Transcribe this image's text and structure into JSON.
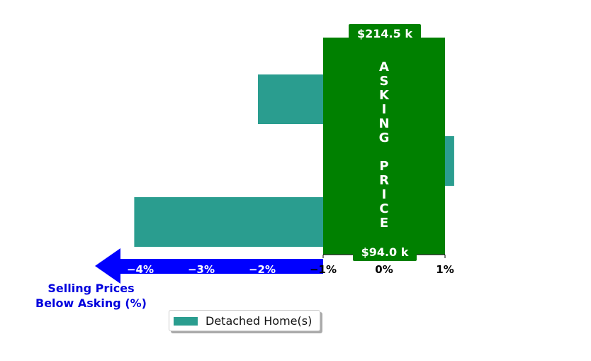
{
  "chart_data": {
    "type": "bar",
    "orientation": "horizontal",
    "categories": [
      "",
      "",
      ""
    ],
    "series": [
      {
        "name": "Detached Home(s)",
        "values": [
          -2.07,
          1.15,
          -4.1
        ],
        "color": "#2a9d8f"
      }
    ],
    "xlim": [
      -4.3,
      1.3
    ],
    "xticks": [
      {
        "value": -4,
        "label": "−4%",
        "color": "#ffffff"
      },
      {
        "value": -3,
        "label": "−3%",
        "color": "#ffffff"
      },
      {
        "value": -2,
        "label": "−2%",
        "color": "#ffffff"
      },
      {
        "value": -1,
        "label": "−1%",
        "color": "#000000"
      },
      {
        "value": 0,
        "label": "0%",
        "color": "#000000"
      },
      {
        "value": 1,
        "label": "1%",
        "color": "#000000"
      }
    ],
    "grid": false,
    "legend_position": "bottom-center",
    "asking_price_band": {
      "x_range": [
        -1,
        1
      ],
      "color": "#008000",
      "label": "ASKING PRICE",
      "top_value": "$214.5 k",
      "bottom_value": "$94.0 k"
    },
    "below_asking_arrow": {
      "label_line1": "Selling Prices",
      "label_line2": "Below Asking (%)",
      "color": "#0000ff"
    }
  }
}
